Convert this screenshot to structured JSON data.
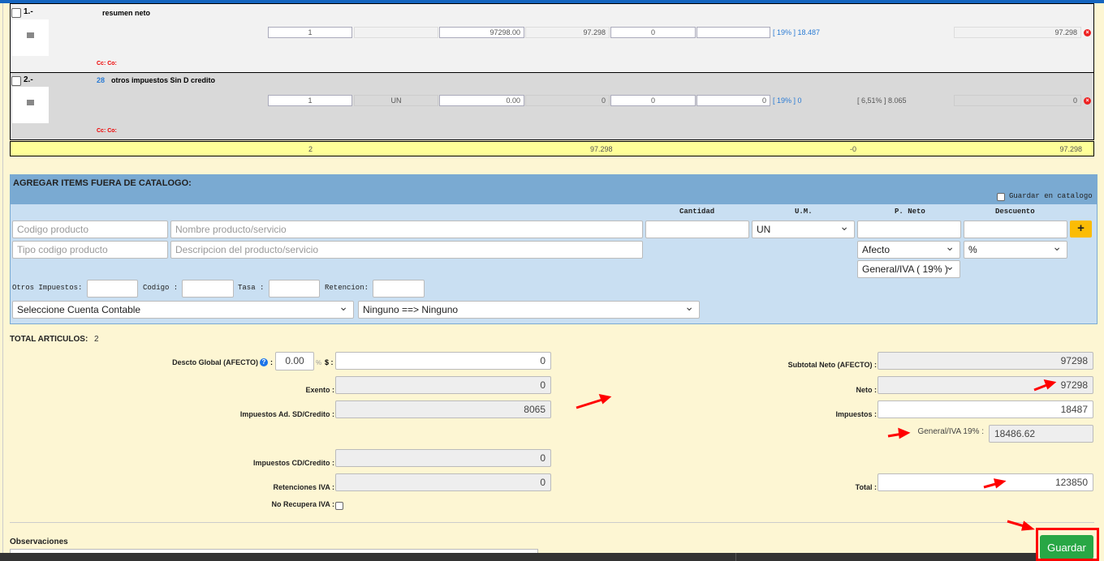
{
  "items": [
    {
      "num": "1.-",
      "code": "",
      "name": "resumen neto",
      "cc": "Cc: Co:",
      "qty": "1",
      "um": "",
      "price": "97298.00",
      "net": "97.298",
      "disc": "0",
      "extra": "",
      "tax": "[ 19% ] 18.487",
      "other_tax": "",
      "total": "97.298"
    },
    {
      "num": "2.-",
      "code": "28",
      "name": "otros impuestos Sin D credito",
      "cc": "Cc: Co:",
      "qty": "1",
      "um": "UN",
      "price": "0.00",
      "net": "0",
      "disc": "0",
      "extra": "0",
      "tax": "[ 19% ] 0",
      "other_tax": "[ 6,51% ] 8.065",
      "total": "0"
    }
  ],
  "totals_row": {
    "count": "2",
    "net": "97.298",
    "disc": "-0",
    "total": "97.298"
  },
  "panel": {
    "title": "AGREGAR ITEMS FUERA DE CATALOGO:",
    "save_catalog": "Guardar en catalogo",
    "headers": {
      "cantidad": "Cantidad",
      "um": "U.M.",
      "pneto": "P. Neto",
      "descuento": "Descuento"
    },
    "codigo_ph": "Codigo producto",
    "nombre_ph": "Nombre producto/servicio",
    "tipo_ph": "Tipo codigo producto",
    "descripcion_ph": "Descripcion del producto/servicio",
    "um_value": "UN",
    "afecto_value": "Afecto",
    "pct_value": "%",
    "iva_value": "General/IVA ( 19% )",
    "add": "+",
    "otros": "Otros Impuestos:",
    "codigo": "Codigo :",
    "tasa": "Tasa :",
    "retencion": "Retencion:",
    "cuenta_value": "Seleccione Cuenta Contable",
    "ninguno_value": "Ninguno ==> Ninguno"
  },
  "summary": {
    "total_articulos_label": "TOTAL ARTICULOS:",
    "total_articulos": "2",
    "descto_label": "Descto Global (AFECTO)",
    "descto_pct": "0.00",
    "pct_sym": "%",
    "dollar": "$ :",
    "descto_amount": "0",
    "exento_label": "Exento :",
    "exento": "0",
    "imp_sd_label": "Impuestos Ad. SD/Credito :",
    "imp_sd": "8065",
    "imp_cd_label": "Impuestos CD/Credito :",
    "imp_cd": "0",
    "ret_label": "Retenciones IVA :",
    "ret": "0",
    "no_recupera_label": "No Recupera IVA :",
    "subtotal_label": "Subtotal Neto (AFECTO) :",
    "subtotal": "97298",
    "neto_label": "Neto :",
    "neto": "97298",
    "impuestos_label": "Impuestos :",
    "impuestos": "18487",
    "iva_label": "General/IVA 19% :",
    "iva": "18486.62",
    "total_label": "Total :",
    "total": "123850"
  },
  "observaciones": "Observaciones",
  "guardar": "Guardar",
  "colors": {
    "accent_blue": "#7aaad2",
    "save_green": "#28a745",
    "add_yellow": "#fbbc05",
    "annotation_red": "#ff0000"
  }
}
